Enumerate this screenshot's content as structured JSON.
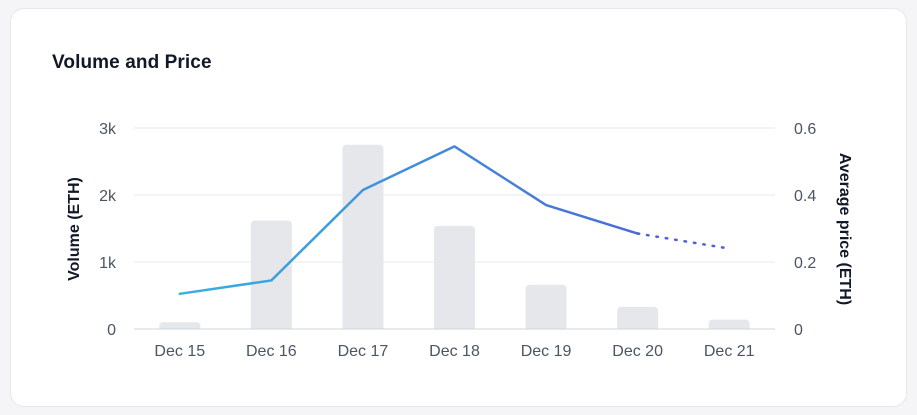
{
  "card": {
    "title": "Volume and Price"
  },
  "chart_data": {
    "type": "bar",
    "title": "Volume and Price",
    "categories": [
      "Dec 15",
      "Dec 16",
      "Dec 17",
      "Dec 18",
      "Dec 19",
      "Dec 20",
      "Dec 21"
    ],
    "series": [
      {
        "name": "Volume (ETH)",
        "type": "bar",
        "axis": "left",
        "values": [
          100,
          1620,
          2750,
          1540,
          660,
          330,
          140
        ],
        "color": "#e5e7ea"
      },
      {
        "name": "Average price (ETH)",
        "type": "line",
        "axis": "right",
        "values": [
          0.105,
          0.145,
          0.415,
          0.545,
          0.37,
          0.285,
          0.24
        ]
      }
    ],
    "line_gradient": [
      "#38b0e0",
      "#4f5fd6"
    ],
    "line_dotted_from_index": 5,
    "y_left": {
      "label": "Volume (ETH)",
      "ylim": [
        0,
        3000
      ],
      "ticks": [
        0,
        1000,
        2000,
        3000
      ],
      "tick_labels": [
        "0",
        "1k",
        "2k",
        "3k"
      ]
    },
    "y_right": {
      "label": "Average price (ETH)",
      "ylim": [
        0,
        0.6
      ],
      "ticks": [
        0,
        0.2,
        0.4,
        0.6
      ],
      "tick_labels": [
        "0",
        "0.2",
        "0.4",
        "0.6"
      ]
    },
    "grid": true,
    "legend": "none"
  }
}
